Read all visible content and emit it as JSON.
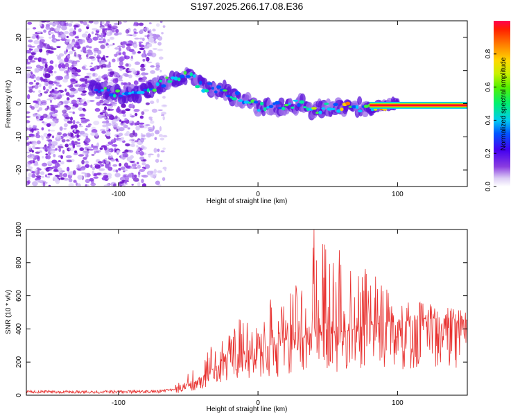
{
  "chart_data": [
    {
      "type": "heatmap",
      "title": "S197.2025.266.17.08.E36",
      "xlabel": "Height of straight line (km)",
      "ylabel": "Frequency (Hz)",
      "xlim": [
        -166,
        150
      ],
      "ylim": [
        -25,
        25
      ],
      "xticks": [
        -100,
        0,
        100
      ],
      "yticks": [
        -20,
        -10,
        0,
        10,
        20
      ],
      "colorbar": {
        "label": "Normalized spectral amplitude",
        "range": [
          0,
          1
        ],
        "ticks": [
          "0.0",
          "0.2",
          "0.4",
          "0.6",
          "0.8"
        ],
        "tick_values": [
          0.0,
          0.2,
          0.4,
          0.6,
          0.8
        ]
      },
      "ridge": {
        "description": "Dominant spectral ridge",
        "x": [
          -116,
          -100,
          -85,
          -75,
          -65,
          -55,
          -50,
          -45,
          -40,
          -35,
          -30,
          -25,
          -20,
          -15,
          -10,
          -5,
          0,
          5,
          10,
          20,
          30,
          40,
          50,
          60,
          70,
          80,
          90,
          100,
          150
        ],
        "freq_hz": [
          4,
          3,
          3,
          5,
          7,
          8,
          9,
          7,
          5,
          5,
          4,
          4,
          3,
          2,
          1,
          0,
          -1,
          -1,
          -1,
          -1,
          0,
          -2,
          -1,
          -1,
          -1,
          -1,
          -0.5,
          -0.5,
          -0.5
        ]
      }
    },
    {
      "type": "line",
      "xlabel": "Height of straight line (km)",
      "ylabel": "SNR (10 * v/v)",
      "xlim": [
        -166,
        150
      ],
      "ylim": [
        0,
        1000
      ],
      "xticks": [
        -100,
        0,
        100
      ],
      "yticks": [
        0,
        200,
        400,
        600,
        800,
        1000
      ],
      "series": [
        {
          "name": "SNR",
          "color": "#e8312f",
          "envelope_x": [
            -166,
            -100,
            -70,
            -55,
            -45,
            -35,
            -20,
            0,
            20,
            30,
            40,
            50,
            60,
            70,
            80,
            90,
            100,
            110,
            120,
            130,
            140,
            150
          ],
          "baseline": [
            20,
            20,
            22,
            40,
            80,
            140,
            240,
            280,
            320,
            340,
            380,
            380,
            380,
            400,
            420,
            440,
            440,
            450,
            460,
            460,
            450,
            450
          ],
          "peak": [
            35,
            35,
            50,
            90,
            170,
            320,
            420,
            560,
            620,
            700,
            1000,
            900,
            880,
            820,
            780,
            660,
            580,
            560,
            560,
            540,
            530,
            520
          ]
        }
      ]
    }
  ],
  "colors": {
    "line": "#e8312f",
    "background": "#ffffff",
    "axes": "#000000"
  }
}
